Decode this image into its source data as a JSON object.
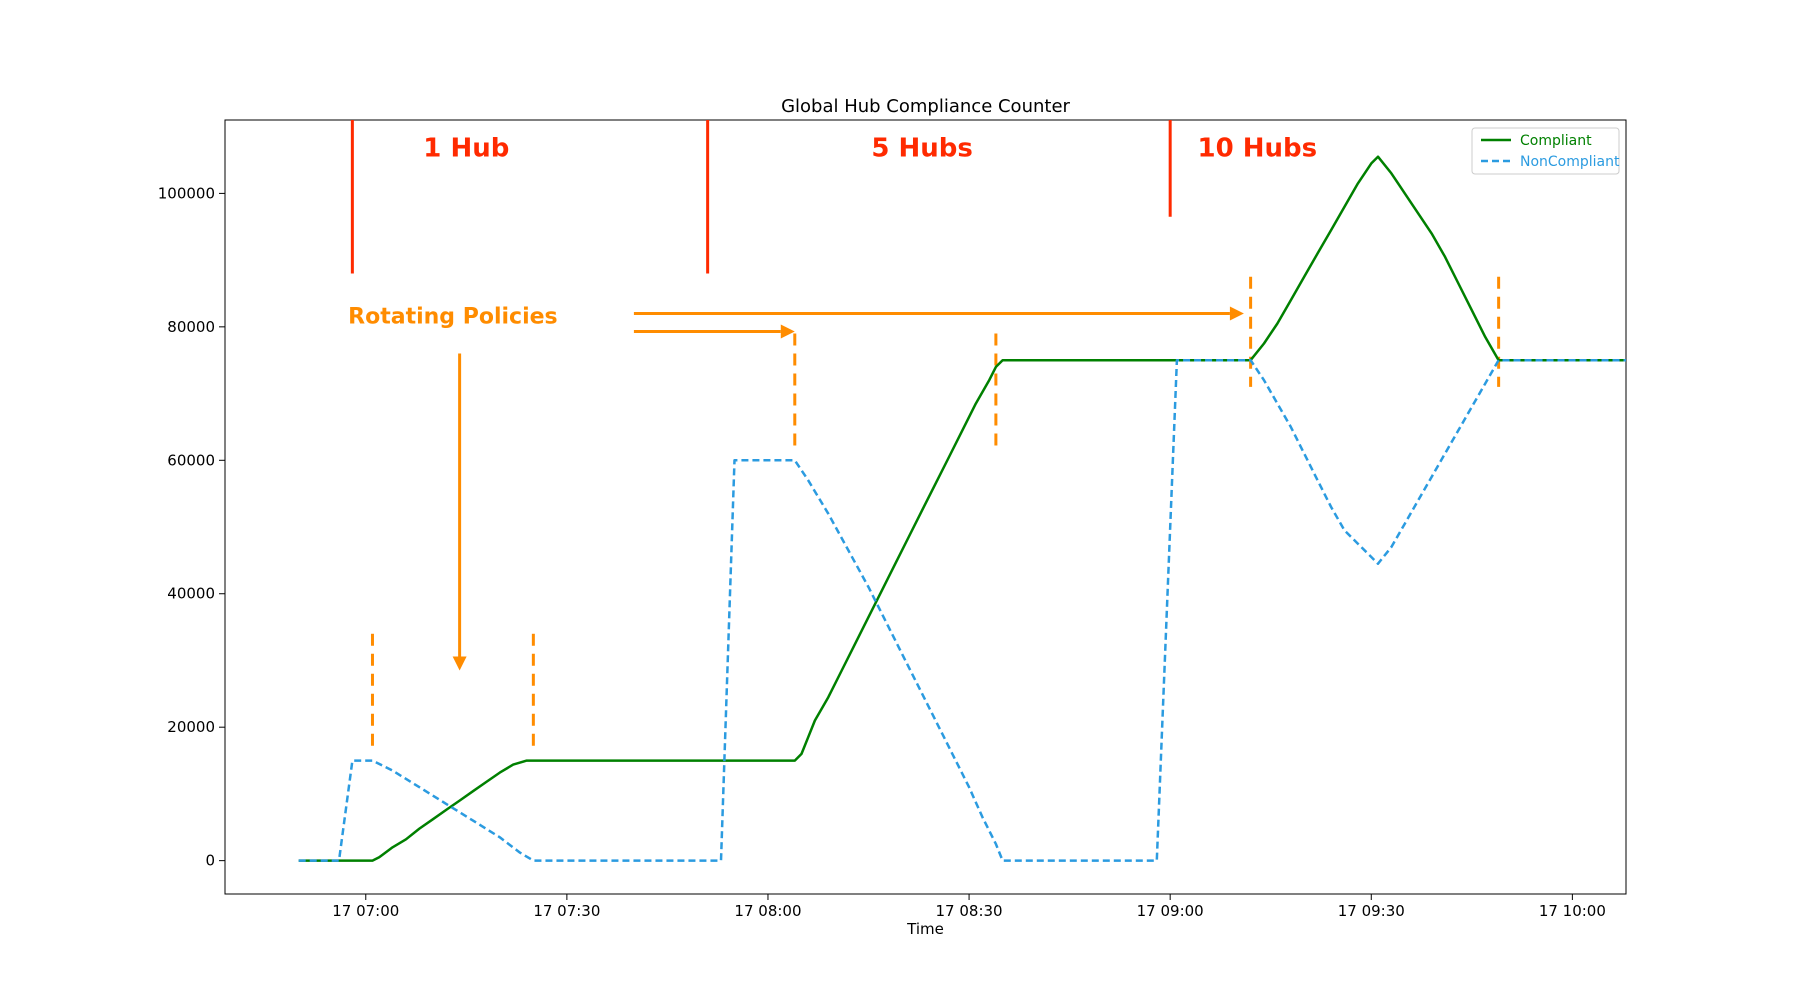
{
  "chart_data": {
    "type": "line",
    "title": "Global Hub Compliance Counter",
    "xlabel": "Time",
    "ylabel": "",
    "x_ticks": [
      "17 07:00",
      "17 07:30",
      "17 08:00",
      "17 08:30",
      "17 09:00",
      "17 09:30",
      "17 10:00"
    ],
    "y_ticks": [
      "0",
      "20000",
      "40000",
      "60000",
      "80000",
      "100000"
    ],
    "xlim": [
      "06:39",
      "10:08"
    ],
    "ylim": [
      -5000,
      111000
    ],
    "grid": false,
    "legend_position": "top-right",
    "series": [
      {
        "name": "Compliant",
        "color": "#008000",
        "style": "solid",
        "points": [
          [
            "06:50",
            0
          ],
          [
            "07:01",
            0
          ],
          [
            "07:02",
            500
          ],
          [
            "07:04",
            2000
          ],
          [
            "07:06",
            3200
          ],
          [
            "07:08",
            4800
          ],
          [
            "07:10",
            6200
          ],
          [
            "07:12",
            7600
          ],
          [
            "07:14",
            9000
          ],
          [
            "07:16",
            10400
          ],
          [
            "07:18",
            11800
          ],
          [
            "07:20",
            13200
          ],
          [
            "07:22",
            14400
          ],
          [
            "07:24",
            15000
          ],
          [
            "07:30",
            15000
          ],
          [
            "07:45",
            15000
          ],
          [
            "08:00",
            15000
          ],
          [
            "08:04",
            15000
          ],
          [
            "08:05",
            16000
          ],
          [
            "08:06",
            18500
          ],
          [
            "08:07",
            21000
          ],
          [
            "08:09",
            24500
          ],
          [
            "08:11",
            28500
          ],
          [
            "08:13",
            32500
          ],
          [
            "08:15",
            36500
          ],
          [
            "08:17",
            40500
          ],
          [
            "08:19",
            44500
          ],
          [
            "08:21",
            48500
          ],
          [
            "08:23",
            52500
          ],
          [
            "08:25",
            56500
          ],
          [
            "08:27",
            60500
          ],
          [
            "08:29",
            64500
          ],
          [
            "08:31",
            68500
          ],
          [
            "08:33",
            72000
          ],
          [
            "08:34",
            74000
          ],
          [
            "08:35",
            75000
          ],
          [
            "08:45",
            75000
          ],
          [
            "09:00",
            75000
          ],
          [
            "09:12",
            75000
          ],
          [
            "09:14",
            77500
          ],
          [
            "09:16",
            80500
          ],
          [
            "09:18",
            84000
          ],
          [
            "09:20",
            87500
          ],
          [
            "09:22",
            91000
          ],
          [
            "09:24",
            94500
          ],
          [
            "09:26",
            98000
          ],
          [
            "09:28",
            101500
          ],
          [
            "09:30",
            104500
          ],
          [
            "09:31",
            105500
          ],
          [
            "09:33",
            103000
          ],
          [
            "09:35",
            100000
          ],
          [
            "09:37",
            97000
          ],
          [
            "09:39",
            94000
          ],
          [
            "09:41",
            90500
          ],
          [
            "09:43",
            86500
          ],
          [
            "09:45",
            82500
          ],
          [
            "09:47",
            78500
          ],
          [
            "09:49",
            75000
          ],
          [
            "10:00",
            75000
          ],
          [
            "10:08",
            75000
          ]
        ]
      },
      {
        "name": "NonCompliant",
        "color": "#2b9be0",
        "style": "dashed",
        "points": [
          [
            "06:50",
            0
          ],
          [
            "06:56",
            0
          ],
          [
            "06:58",
            15000
          ],
          [
            "07:00",
            15000
          ],
          [
            "07:01",
            15000
          ],
          [
            "07:04",
            13500
          ],
          [
            "07:08",
            11000
          ],
          [
            "07:12",
            8500
          ],
          [
            "07:16",
            6000
          ],
          [
            "07:20",
            3500
          ],
          [
            "07:23",
            1200
          ],
          [
            "07:25",
            0
          ],
          [
            "07:30",
            0
          ],
          [
            "07:45",
            0
          ],
          [
            "07:53",
            0
          ],
          [
            "07:55",
            60000
          ],
          [
            "08:00",
            60000
          ],
          [
            "08:04",
            60000
          ],
          [
            "08:06",
            57000
          ],
          [
            "08:09",
            52000
          ],
          [
            "08:12",
            46500
          ],
          [
            "08:15",
            41000
          ],
          [
            "08:18",
            35000
          ],
          [
            "08:21",
            29000
          ],
          [
            "08:24",
            23000
          ],
          [
            "08:27",
            17000
          ],
          [
            "08:30",
            11000
          ],
          [
            "08:32",
            6500
          ],
          [
            "08:34",
            2500
          ],
          [
            "08:35",
            0
          ],
          [
            "08:45",
            0
          ],
          [
            "08:58",
            0
          ],
          [
            "09:01",
            75000
          ],
          [
            "09:12",
            75000
          ],
          [
            "09:14",
            72000
          ],
          [
            "09:16",
            68500
          ],
          [
            "09:18",
            65000
          ],
          [
            "09:20",
            61000
          ],
          [
            "09:22",
            57000
          ],
          [
            "09:24",
            53000
          ],
          [
            "09:26",
            49500
          ],
          [
            "09:28",
            47500
          ],
          [
            "09:30",
            45500
          ],
          [
            "09:31",
            44500
          ],
          [
            "09:33",
            47000
          ],
          [
            "09:35",
            50500
          ],
          [
            "09:37",
            54000
          ],
          [
            "09:39",
            57500
          ],
          [
            "09:41",
            61000
          ],
          [
            "09:43",
            64500
          ],
          [
            "09:45",
            68000
          ],
          [
            "09:47",
            71500
          ],
          [
            "09:49",
            75000
          ],
          [
            "10:00",
            75000
          ],
          [
            "10:08",
            75000
          ]
        ]
      }
    ],
    "annotations": {
      "hub_labels": [
        {
          "text": "1 Hub",
          "x": "07:15",
          "y": 105500
        },
        {
          "text": "5 Hubs",
          "x": "08:23",
          "y": 105500
        },
        {
          "text": "10 Hubs",
          "x": "09:13",
          "y": 105500
        }
      ],
      "hub_lines": [
        {
          "x": "06:58",
          "y_top": 111000,
          "y_bottom": 88000
        },
        {
          "x": "07:51",
          "y_top": 111000,
          "y_bottom": 88000
        },
        {
          "x": "09:00",
          "y_top": 111000,
          "y_bottom": 96500
        }
      ],
      "policy_lines": [
        {
          "x": "07:01",
          "y_top": 34000,
          "y_bottom": 17000
        },
        {
          "x": "07:25",
          "y_top": 34000,
          "y_bottom": 17000
        },
        {
          "x": "08:04",
          "y_top": 79000,
          "y_bottom": 62000
        },
        {
          "x": "08:34",
          "y_top": 79000,
          "y_bottom": 62000
        },
        {
          "x": "09:12",
          "y_top": 87500,
          "y_bottom": 71000
        },
        {
          "x": "09:49",
          "y_top": 87500,
          "y_bottom": 71000
        }
      ],
      "rotating_label": {
        "text": "Rotating Policies",
        "x": "07:13",
        "y": 80500
      },
      "arrows": [
        {
          "from": [
            "07:14",
            76000
          ],
          "to": [
            "07:14",
            28500
          ],
          "direction": "down"
        },
        {
          "from": [
            "07:40",
            79300
          ],
          "to": [
            "08:04",
            79300
          ],
          "direction": "right"
        },
        {
          "from": [
            "07:40",
            82000
          ],
          "to": [
            "09:11",
            82000
          ],
          "direction": "right"
        }
      ],
      "colors": {
        "hub": "#ff2a00",
        "policy": "#ff8c00"
      }
    }
  }
}
